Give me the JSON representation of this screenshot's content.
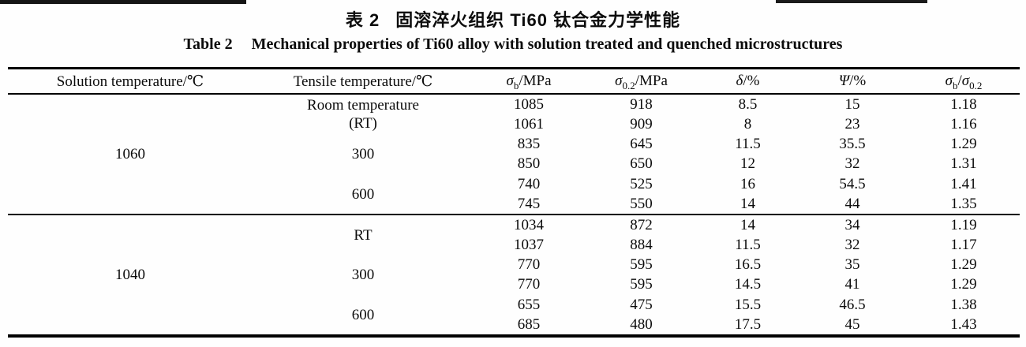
{
  "page": {
    "title_zh": {
      "label": "表 2",
      "text": "固溶淬火组织 Ti60 钛合金力学性能"
    },
    "title_en": {
      "label": "Table 2",
      "text": "Mechanical properties of Ti60 alloy with solution treated and quenched microstructures"
    }
  },
  "table": {
    "columns": [
      {
        "parts": [
          {
            "t": "Solution temperature/℃"
          }
        ]
      },
      {
        "parts": [
          {
            "t": "Tensile temperature/℃"
          }
        ]
      },
      {
        "parts": [
          {
            "t": "σ"
          },
          {
            "t": "b",
            "sub": true
          },
          {
            "t": "/MPa"
          }
        ]
      },
      {
        "parts": [
          {
            "t": "σ"
          },
          {
            "t": "0.2",
            "sub": true
          },
          {
            "t": "/MPa"
          }
        ]
      },
      {
        "parts": [
          {
            "t": "δ"
          },
          {
            "t": "/%"
          }
        ]
      },
      {
        "parts": [
          {
            "t": "Ψ"
          },
          {
            "t": "/%"
          }
        ]
      },
      {
        "parts": [
          {
            "t": "σ"
          },
          {
            "t": "b",
            "sub": true
          },
          {
            "t": "/"
          },
          {
            "t": "σ"
          },
          {
            "t": "0.2",
            "sub": true
          }
        ]
      }
    ],
    "sections": [
      {
        "solution_temp": "1060",
        "groups": [
          {
            "tensile": [
              "Room temperature",
              "(RT)"
            ],
            "rows": [
              [
                "1085",
                "918",
                "8.5",
                "15",
                "1.18"
              ],
              [
                "1061",
                "909",
                "8",
                "23",
                "1.16"
              ]
            ]
          },
          {
            "tensile": [
              "300"
            ],
            "rows": [
              [
                "835",
                "645",
                "11.5",
                "35.5",
                "1.29"
              ],
              [
                "850",
                "650",
                "12",
                "32",
                "1.31"
              ]
            ]
          },
          {
            "tensile": [
              "600"
            ],
            "rows": [
              [
                "740",
                "525",
                "16",
                "54.5",
                "1.41"
              ],
              [
                "745",
                "550",
                "14",
                "44",
                "1.35"
              ]
            ]
          }
        ]
      },
      {
        "solution_temp": "1040",
        "groups": [
          {
            "tensile": [
              "RT"
            ],
            "rows": [
              [
                "1034",
                "872",
                "14",
                "34",
                "1.19"
              ],
              [
                "1037",
                "884",
                "11.5",
                "32",
                "1.17"
              ]
            ]
          },
          {
            "tensile": [
              "300"
            ],
            "rows": [
              [
                "770",
                "595",
                "16.5",
                "35",
                "1.29"
              ],
              [
                "770",
                "595",
                "14.5",
                "41",
                "1.29"
              ]
            ]
          },
          {
            "tensile": [
              "600"
            ],
            "rows": [
              [
                "655",
                "475",
                "15.5",
                "46.5",
                "1.38"
              ],
              [
                "685",
                "480",
                "17.5",
                "45",
                "1.43"
              ]
            ]
          }
        ]
      }
    ]
  }
}
